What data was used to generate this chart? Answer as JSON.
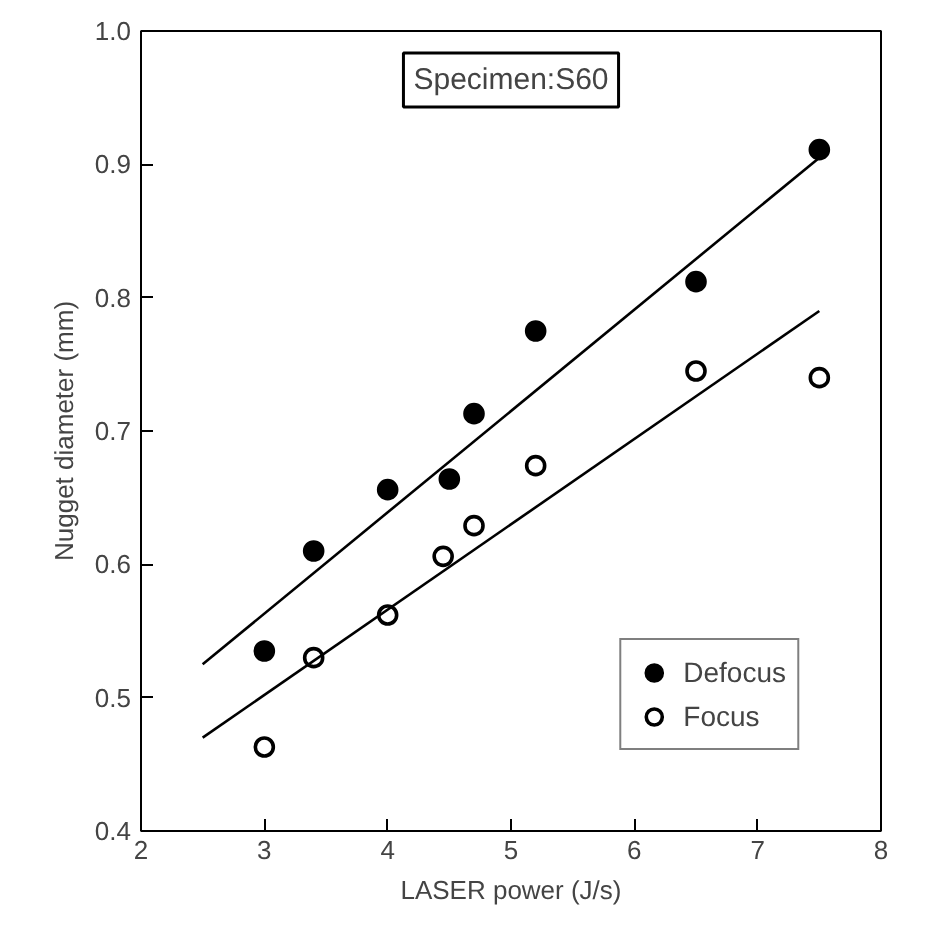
{
  "chart_data": {
    "type": "scatter",
    "xlabel": "LASER power (J/s)",
    "ylabel": "Nugget diameter (mm)",
    "xlim": [
      2,
      8
    ],
    "ylim": [
      0.4,
      1.0
    ],
    "xticks": [
      2,
      3,
      4,
      5,
      6,
      7,
      8
    ],
    "yticks": [
      {
        "value": 0.4,
        "label": "0.4"
      },
      {
        "value": 0.5,
        "label": "0.5"
      },
      {
        "value": 0.6,
        "label": "0.6"
      },
      {
        "value": 0.7,
        "label": "0.7"
      },
      {
        "value": 0.8,
        "label": "0.8"
      },
      {
        "value": 0.9,
        "label": "0.9"
      },
      {
        "value": 1.0,
        "label": "1.0"
      }
    ],
    "grid": false,
    "legend": "bottom right",
    "annotations": [
      "Specimen:S60"
    ],
    "series": [
      {
        "name": "Defocus",
        "color": "#000000",
        "marker": "circle",
        "x": [
          3.0,
          3.4,
          4.0,
          4.5,
          4.7,
          5.2,
          6.5,
          7.5
        ],
        "values": [
          0.535,
          0.61,
          0.656,
          0.664,
          0.713,
          0.775,
          0.812,
          0.911
        ]
      },
      {
        "name": "Focus",
        "color": "#ffffff",
        "marker": "circle",
        "x": [
          3.0,
          3.4,
          4.0,
          4.45,
          4.7,
          5.2,
          6.5,
          7.5
        ],
        "values": [
          0.463,
          0.53,
          0.562,
          0.606,
          0.629,
          0.674,
          0.745,
          0.74
        ]
      },
      {
        "type": "line",
        "color": "#000000",
        "x": [
          2.5,
          7.5
        ],
        "values": [
          0.525,
          0.905
        ]
      },
      {
        "type": "line",
        "color": "#000000",
        "x": [
          2.5,
          7.5
        ],
        "values": [
          0.47,
          0.79
        ]
      }
    ]
  }
}
